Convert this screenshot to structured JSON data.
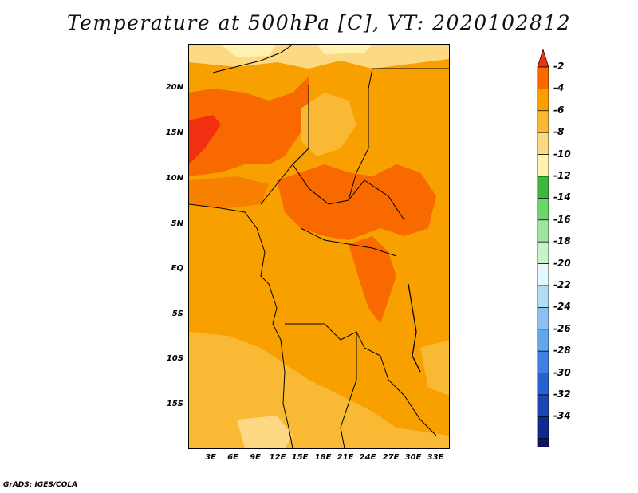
{
  "title": "Temperature at 500hPa [C], VT: 2020102812",
  "credit": "GrADS: IGES/COLA",
  "map": {
    "lat_labels": [
      "20N",
      "15N",
      "10N",
      "5N",
      "EQ",
      "5S",
      "10S",
      "15S"
    ],
    "lon_labels": [
      "3E",
      "6E",
      "9E",
      "12E",
      "15E",
      "18E",
      "21E",
      "24E",
      "27E",
      "30E",
      "33E"
    ]
  },
  "colorbar": {
    "labels": [
      "-2",
      "-4",
      "-6",
      "-8",
      "-10",
      "-12",
      "-14",
      "-16",
      "-18",
      "-20",
      "-22",
      "-24",
      "-26",
      "-28",
      "-30",
      "-32",
      "-34"
    ],
    "colors": [
      "#f03010",
      "#f86a00",
      "#f7a000",
      "#f9b935",
      "#fdd983",
      "#fff2b0",
      "#3cb83c",
      "#6ed46e",
      "#9fe39f",
      "#c8f2c8",
      "#e6f8ff",
      "#b4dcf5",
      "#8cc0f0",
      "#64a6ec",
      "#4080e0",
      "#2960d0",
      "#1c46b0",
      "#0e2a8c",
      "#10145a",
      "#dde1f5"
    ]
  }
}
